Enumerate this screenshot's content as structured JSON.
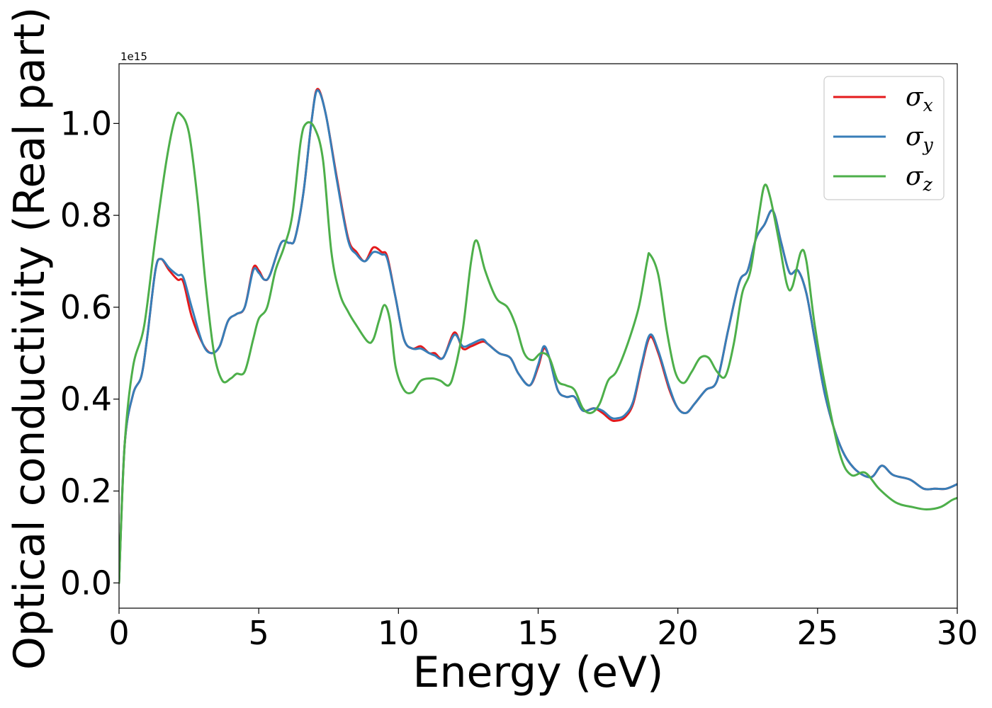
{
  "chart_data": {
    "type": "line",
    "xlabel": "Energy (eV)",
    "ylabel": "Optical conductivity (Real part)",
    "y_offset_text": "1e15",
    "xlim": [
      0,
      30
    ],
    "ylim": [
      -0.055,
      1.13
    ],
    "x_ticks": [
      0,
      5,
      10,
      15,
      20,
      25,
      30
    ],
    "y_ticks": [
      0.0,
      0.2,
      0.4,
      0.6,
      0.8,
      1.0
    ],
    "x_tick_labels": [
      "0",
      "5",
      "10",
      "15",
      "20",
      "25",
      "30"
    ],
    "y_tick_labels": [
      "0.0",
      "0.2",
      "0.4",
      "0.6",
      "0.8",
      "1.0"
    ],
    "grid": false,
    "legend_position": "top-right",
    "series": [
      {
        "name": "σx",
        "symbol": "σ",
        "subscript": "x",
        "color": "#e41a1c",
        "points": [
          [
            0,
            0
          ],
          [
            0.2,
            0.3
          ],
          [
            0.5,
            0.41
          ],
          [
            0.8,
            0.45
          ],
          [
            1.0,
            0.53
          ],
          [
            1.3,
            0.68
          ],
          [
            1.5,
            0.705
          ],
          [
            1.8,
            0.68
          ],
          [
            2.1,
            0.66
          ],
          [
            2.3,
            0.655
          ],
          [
            2.6,
            0.58
          ],
          [
            3.0,
            0.52
          ],
          [
            3.3,
            0.5
          ],
          [
            3.6,
            0.515
          ],
          [
            3.9,
            0.57
          ],
          [
            4.2,
            0.585
          ],
          [
            4.5,
            0.6
          ],
          [
            4.8,
            0.685
          ],
          [
            5.0,
            0.68
          ],
          [
            5.2,
            0.66
          ],
          [
            5.4,
            0.67
          ],
          [
            5.8,
            0.74
          ],
          [
            6.1,
            0.74
          ],
          [
            6.3,
            0.75
          ],
          [
            6.6,
            0.85
          ],
          [
            6.9,
            1.01
          ],
          [
            7.1,
            1.075
          ],
          [
            7.4,
            1.02
          ],
          [
            7.8,
            0.88
          ],
          [
            8.2,
            0.75
          ],
          [
            8.5,
            0.72
          ],
          [
            8.8,
            0.7
          ],
          [
            9.1,
            0.73
          ],
          [
            9.4,
            0.72
          ],
          [
            9.6,
            0.71
          ],
          [
            9.9,
            0.62
          ],
          [
            10.2,
            0.53
          ],
          [
            10.5,
            0.51
          ],
          [
            10.8,
            0.515
          ],
          [
            11.1,
            0.5
          ],
          [
            11.3,
            0.5
          ],
          [
            11.6,
            0.49
          ],
          [
            12.0,
            0.545
          ],
          [
            12.3,
            0.51
          ],
          [
            12.6,
            0.515
          ],
          [
            13.0,
            0.525
          ],
          [
            13.2,
            0.52
          ],
          [
            13.6,
            0.5
          ],
          [
            14.0,
            0.49
          ],
          [
            14.3,
            0.455
          ],
          [
            14.7,
            0.43
          ],
          [
            15.0,
            0.47
          ],
          [
            15.2,
            0.51
          ],
          [
            15.4,
            0.49
          ],
          [
            15.7,
            0.42
          ],
          [
            16.0,
            0.405
          ],
          [
            16.3,
            0.405
          ],
          [
            16.6,
            0.375
          ],
          [
            17.0,
            0.38
          ],
          [
            17.3,
            0.37
          ],
          [
            17.6,
            0.355
          ],
          [
            17.8,
            0.353
          ],
          [
            18.1,
            0.36
          ],
          [
            18.4,
            0.39
          ],
          [
            18.7,
            0.47
          ],
          [
            19.0,
            0.535
          ],
          [
            19.3,
            0.5
          ],
          [
            19.7,
            0.42
          ],
          [
            20.0,
            0.38
          ],
          [
            20.3,
            0.37
          ],
          [
            20.6,
            0.39
          ],
          [
            21.0,
            0.42
          ],
          [
            21.4,
            0.44
          ],
          [
            21.8,
            0.55
          ],
          [
            22.2,
            0.655
          ],
          [
            22.5,
            0.68
          ],
          [
            22.8,
            0.75
          ],
          [
            23.1,
            0.78
          ],
          [
            23.4,
            0.81
          ],
          [
            23.7,
            0.74
          ],
          [
            24.0,
            0.675
          ],
          [
            24.3,
            0.68
          ],
          [
            24.6,
            0.63
          ],
          [
            24.9,
            0.53
          ],
          [
            25.3,
            0.4
          ],
          [
            25.8,
            0.3
          ],
          [
            26.3,
            0.25
          ],
          [
            26.9,
            0.23
          ],
          [
            27.3,
            0.255
          ],
          [
            27.7,
            0.235
          ],
          [
            28.3,
            0.225
          ],
          [
            28.8,
            0.205
          ],
          [
            29.2,
            0.205
          ],
          [
            29.6,
            0.205
          ],
          [
            30.0,
            0.215
          ]
        ]
      },
      {
        "name": "σy",
        "symbol": "σ",
        "subscript": "y",
        "color": "#377eb8",
        "points": [
          [
            0,
            0
          ],
          [
            0.2,
            0.3
          ],
          [
            0.5,
            0.41
          ],
          [
            0.8,
            0.45
          ],
          [
            1.0,
            0.53
          ],
          [
            1.3,
            0.68
          ],
          [
            1.5,
            0.705
          ],
          [
            1.8,
            0.685
          ],
          [
            2.1,
            0.67
          ],
          [
            2.3,
            0.665
          ],
          [
            2.6,
            0.6
          ],
          [
            3.0,
            0.52
          ],
          [
            3.3,
            0.5
          ],
          [
            3.6,
            0.515
          ],
          [
            3.9,
            0.57
          ],
          [
            4.2,
            0.585
          ],
          [
            4.5,
            0.6
          ],
          [
            4.8,
            0.68
          ],
          [
            5.0,
            0.675
          ],
          [
            5.2,
            0.66
          ],
          [
            5.4,
            0.67
          ],
          [
            5.8,
            0.74
          ],
          [
            6.1,
            0.74
          ],
          [
            6.3,
            0.75
          ],
          [
            6.6,
            0.85
          ],
          [
            6.9,
            1.01
          ],
          [
            7.1,
            1.072
          ],
          [
            7.4,
            1.02
          ],
          [
            7.8,
            0.875
          ],
          [
            8.2,
            0.745
          ],
          [
            8.5,
            0.715
          ],
          [
            8.8,
            0.7
          ],
          [
            9.1,
            0.72
          ],
          [
            9.4,
            0.715
          ],
          [
            9.6,
            0.705
          ],
          [
            9.9,
            0.62
          ],
          [
            10.2,
            0.53
          ],
          [
            10.5,
            0.51
          ],
          [
            10.8,
            0.51
          ],
          [
            11.1,
            0.5
          ],
          [
            11.3,
            0.495
          ],
          [
            11.6,
            0.49
          ],
          [
            12.0,
            0.54
          ],
          [
            12.3,
            0.515
          ],
          [
            12.6,
            0.52
          ],
          [
            13.0,
            0.53
          ],
          [
            13.2,
            0.52
          ],
          [
            13.6,
            0.5
          ],
          [
            14.0,
            0.49
          ],
          [
            14.3,
            0.455
          ],
          [
            14.7,
            0.43
          ],
          [
            15.0,
            0.475
          ],
          [
            15.2,
            0.515
          ],
          [
            15.4,
            0.49
          ],
          [
            15.7,
            0.42
          ],
          [
            16.0,
            0.405
          ],
          [
            16.3,
            0.405
          ],
          [
            16.6,
            0.375
          ],
          [
            17.0,
            0.38
          ],
          [
            17.3,
            0.375
          ],
          [
            17.6,
            0.36
          ],
          [
            17.8,
            0.358
          ],
          [
            18.1,
            0.365
          ],
          [
            18.4,
            0.395
          ],
          [
            18.7,
            0.475
          ],
          [
            19.0,
            0.54
          ],
          [
            19.3,
            0.505
          ],
          [
            19.7,
            0.425
          ],
          [
            20.0,
            0.38
          ],
          [
            20.3,
            0.37
          ],
          [
            20.6,
            0.39
          ],
          [
            21.0,
            0.42
          ],
          [
            21.4,
            0.44
          ],
          [
            21.8,
            0.55
          ],
          [
            22.2,
            0.655
          ],
          [
            22.5,
            0.68
          ],
          [
            22.8,
            0.75
          ],
          [
            23.1,
            0.78
          ],
          [
            23.4,
            0.81
          ],
          [
            23.7,
            0.74
          ],
          [
            24.0,
            0.675
          ],
          [
            24.3,
            0.68
          ],
          [
            24.6,
            0.63
          ],
          [
            24.9,
            0.53
          ],
          [
            25.3,
            0.4
          ],
          [
            25.8,
            0.3
          ],
          [
            26.3,
            0.25
          ],
          [
            26.9,
            0.23
          ],
          [
            27.3,
            0.255
          ],
          [
            27.7,
            0.235
          ],
          [
            28.3,
            0.225
          ],
          [
            28.8,
            0.205
          ],
          [
            29.2,
            0.205
          ],
          [
            29.6,
            0.205
          ],
          [
            30.0,
            0.215
          ]
        ]
      },
      {
        "name": "σz",
        "symbol": "σ",
        "subscript": "z",
        "color": "#4daf4a",
        "points": [
          [
            0,
            0
          ],
          [
            0.2,
            0.3
          ],
          [
            0.5,
            0.47
          ],
          [
            0.9,
            0.56
          ],
          [
            1.3,
            0.75
          ],
          [
            1.7,
            0.92
          ],
          [
            2.0,
            1.01
          ],
          [
            2.2,
            1.02
          ],
          [
            2.5,
            0.98
          ],
          [
            2.8,
            0.84
          ],
          [
            3.1,
            0.65
          ],
          [
            3.4,
            0.5
          ],
          [
            3.7,
            0.44
          ],
          [
            4.0,
            0.445
          ],
          [
            4.2,
            0.455
          ],
          [
            4.5,
            0.46
          ],
          [
            4.8,
            0.53
          ],
          [
            5.0,
            0.575
          ],
          [
            5.3,
            0.6
          ],
          [
            5.6,
            0.68
          ],
          [
            5.9,
            0.73
          ],
          [
            6.2,
            0.8
          ],
          [
            6.5,
            0.96
          ],
          [
            6.7,
            1.0
          ],
          [
            7.0,
            0.99
          ],
          [
            7.3,
            0.92
          ],
          [
            7.6,
            0.72
          ],
          [
            7.9,
            0.63
          ],
          [
            8.2,
            0.59
          ],
          [
            8.5,
            0.56
          ],
          [
            8.9,
            0.525
          ],
          [
            9.1,
            0.53
          ],
          [
            9.3,
            0.57
          ],
          [
            9.5,
            0.605
          ],
          [
            9.7,
            0.57
          ],
          [
            9.9,
            0.47
          ],
          [
            10.2,
            0.42
          ],
          [
            10.5,
            0.415
          ],
          [
            10.8,
            0.44
          ],
          [
            11.2,
            0.445
          ],
          [
            11.5,
            0.44
          ],
          [
            11.8,
            0.43
          ],
          [
            12.0,
            0.46
          ],
          [
            12.3,
            0.55
          ],
          [
            12.6,
            0.7
          ],
          [
            12.8,
            0.745
          ],
          [
            13.1,
            0.68
          ],
          [
            13.5,
            0.62
          ],
          [
            13.9,
            0.6
          ],
          [
            14.2,
            0.56
          ],
          [
            14.5,
            0.5
          ],
          [
            14.8,
            0.485
          ],
          [
            15.1,
            0.5
          ],
          [
            15.4,
            0.49
          ],
          [
            15.7,
            0.44
          ],
          [
            16.0,
            0.43
          ],
          [
            16.3,
            0.42
          ],
          [
            16.6,
            0.38
          ],
          [
            16.9,
            0.37
          ],
          [
            17.2,
            0.39
          ],
          [
            17.5,
            0.44
          ],
          [
            17.8,
            0.46
          ],
          [
            18.2,
            0.52
          ],
          [
            18.6,
            0.6
          ],
          [
            18.9,
            0.7
          ],
          [
            19.0,
            0.715
          ],
          [
            19.3,
            0.67
          ],
          [
            19.6,
            0.55
          ],
          [
            19.9,
            0.46
          ],
          [
            20.2,
            0.435
          ],
          [
            20.5,
            0.46
          ],
          [
            20.8,
            0.49
          ],
          [
            21.1,
            0.49
          ],
          [
            21.4,
            0.46
          ],
          [
            21.7,
            0.45
          ],
          [
            22.0,
            0.52
          ],
          [
            22.3,
            0.63
          ],
          [
            22.6,
            0.68
          ],
          [
            22.9,
            0.8
          ],
          [
            23.1,
            0.865
          ],
          [
            23.3,
            0.84
          ],
          [
            23.6,
            0.75
          ],
          [
            23.9,
            0.65
          ],
          [
            24.1,
            0.645
          ],
          [
            24.4,
            0.72
          ],
          [
            24.6,
            0.7
          ],
          [
            24.9,
            0.56
          ],
          [
            25.3,
            0.42
          ],
          [
            25.8,
            0.28
          ],
          [
            26.2,
            0.235
          ],
          [
            26.7,
            0.24
          ],
          [
            27.2,
            0.205
          ],
          [
            27.8,
            0.175
          ],
          [
            28.4,
            0.165
          ],
          [
            28.9,
            0.16
          ],
          [
            29.4,
            0.165
          ],
          [
            29.8,
            0.18
          ],
          [
            30.0,
            0.185
          ]
        ]
      }
    ]
  }
}
